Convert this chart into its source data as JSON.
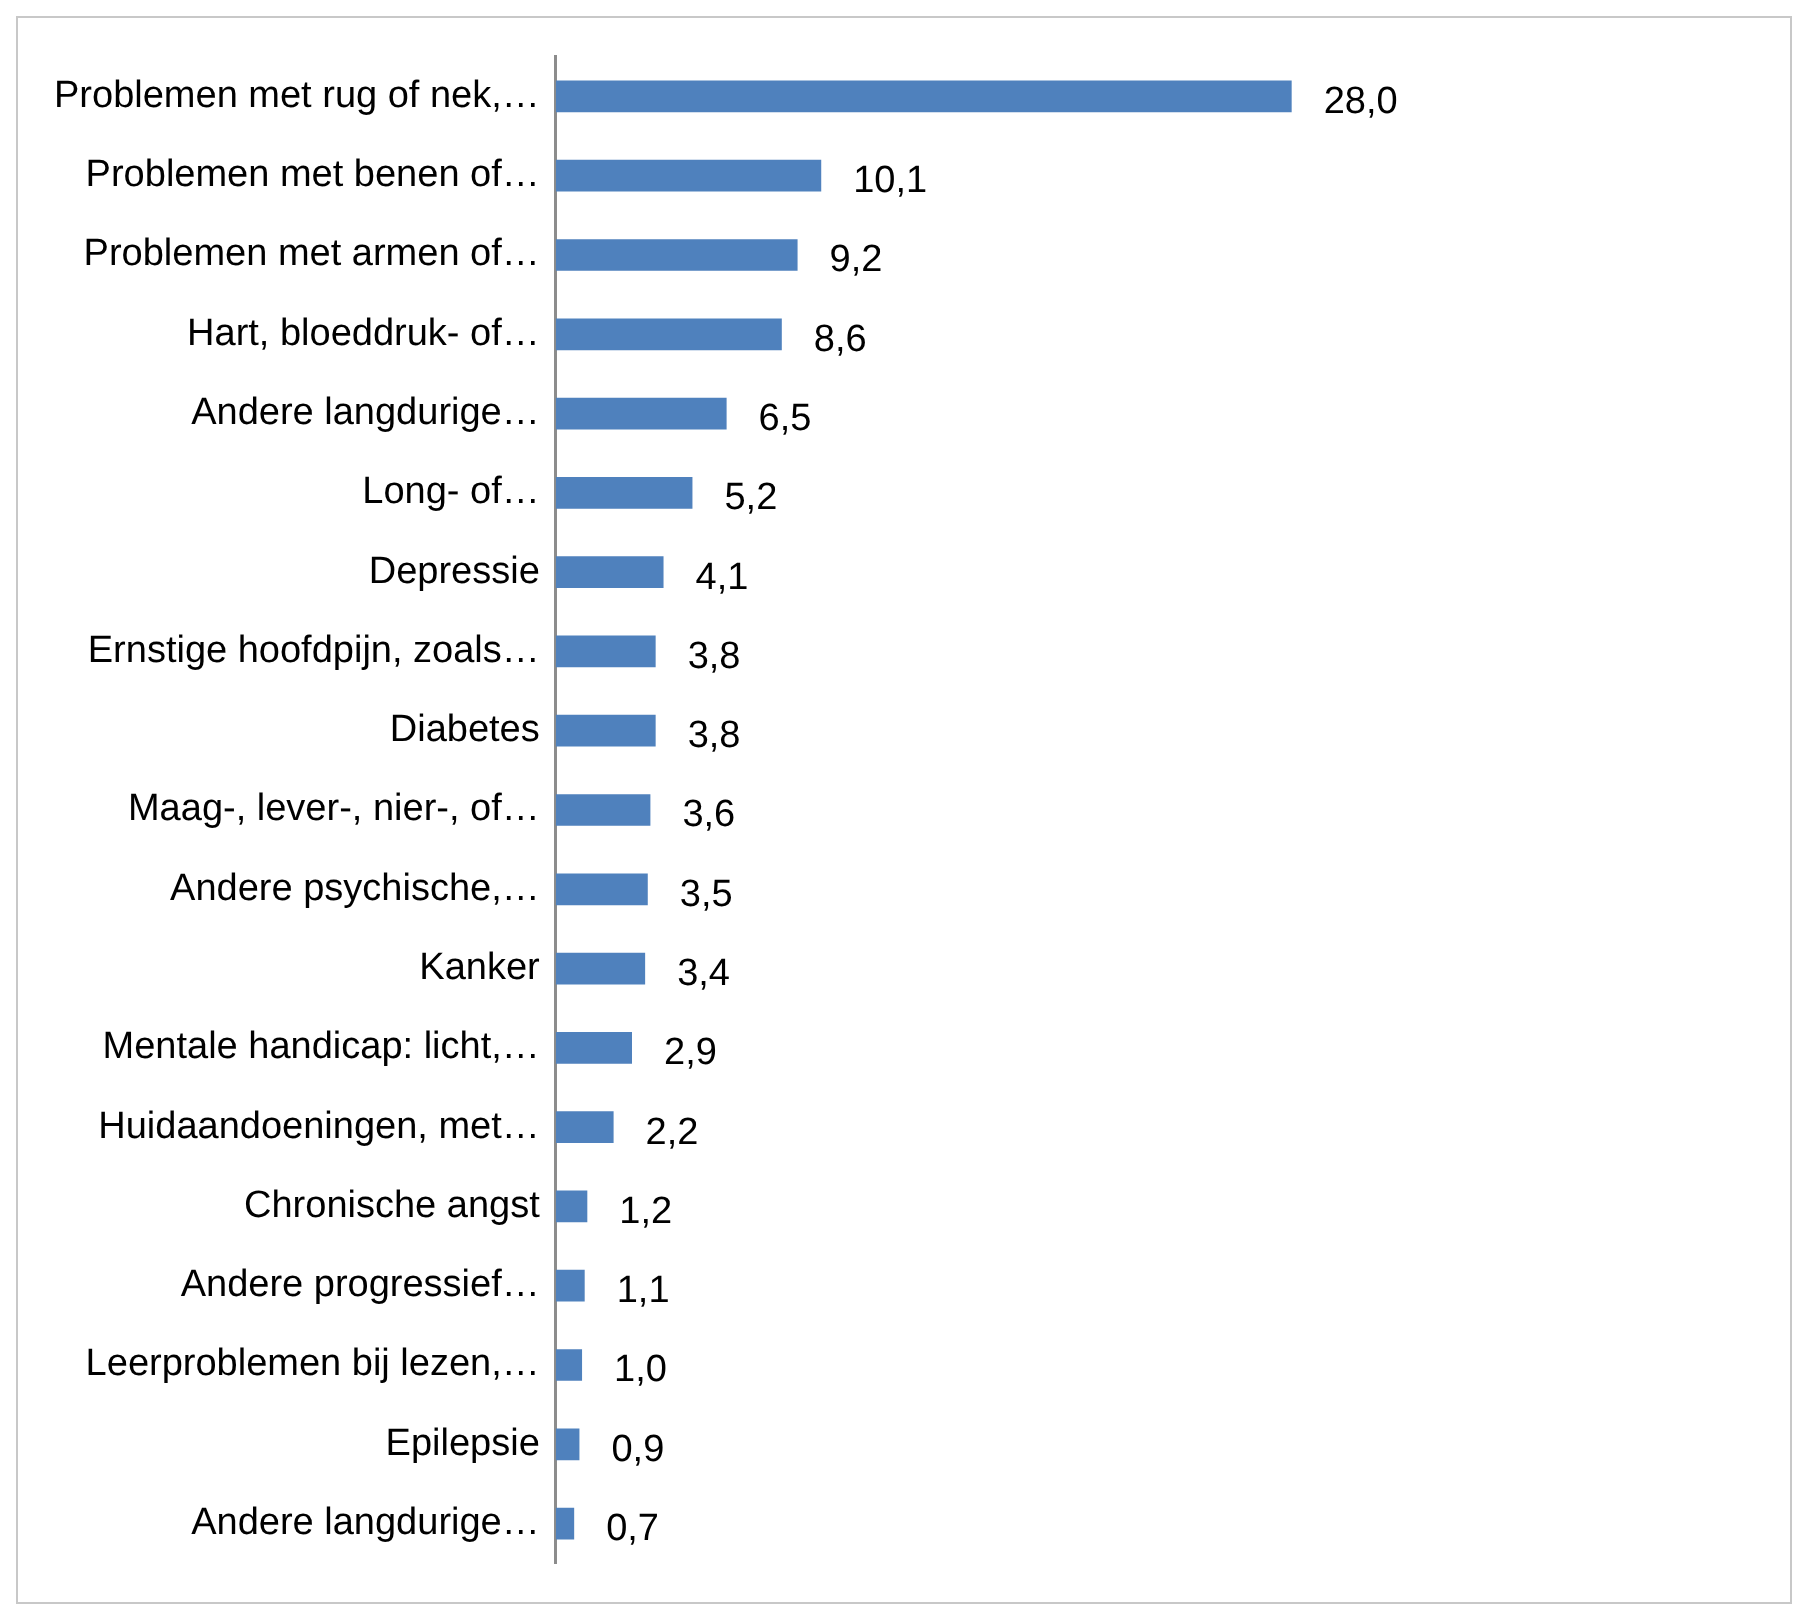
{
  "chart_data": {
    "type": "bar",
    "orientation": "horizontal",
    "categories": [
      "Problemen met rug of nek,…",
      "Problemen met benen of…",
      "Problemen met armen of…",
      "Hart, bloeddruk- of…",
      "Andere langdurige…",
      "Long- of…",
      "Depressie",
      "Ernstige hoofdpijn, zoals…",
      "Diabetes",
      "Maag-, lever-, nier-, of…",
      "Andere psychische,…",
      "Kanker",
      "Mentale handicap: licht,…",
      "Huidaandoeningen, met…",
      "Chronische angst",
      "Andere progressief…",
      "Leerproblemen bij lezen,…",
      "Epilepsie",
      "Andere langdurige…"
    ],
    "values": [
      28.0,
      10.1,
      9.2,
      8.6,
      6.5,
      5.2,
      4.1,
      3.8,
      3.8,
      3.6,
      3.5,
      3.4,
      2.9,
      2.2,
      1.2,
      1.1,
      1.0,
      0.9,
      0.7
    ],
    "value_labels": [
      "28,0",
      "10,1",
      "9,2",
      "8,6",
      "6,5",
      "5,2",
      "4,1",
      "3,8",
      "3,8",
      "3,6",
      "3,5",
      "3,4",
      "2,9",
      "2,2",
      "1,2",
      "1,1",
      "1,0",
      "0,9",
      "0,7"
    ],
    "color": "#4f81bd",
    "grid": false,
    "legend": false,
    "tick_labels": "y"
  }
}
